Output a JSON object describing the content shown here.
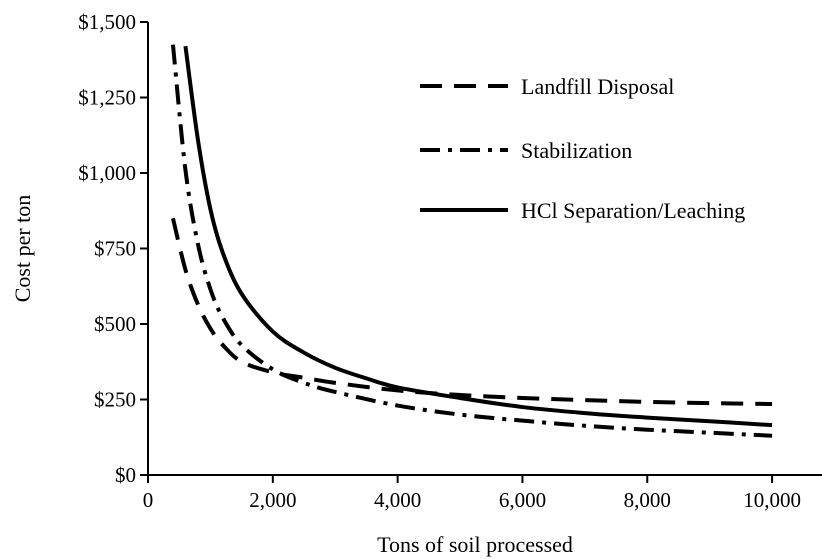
{
  "chart_data": {
    "type": "line",
    "title": "",
    "xlabel": "Tons of soil processed",
    "ylabel": "Cost per ton",
    "xlim": [
      0,
      10800
    ],
    "ylim": [
      0,
      1500
    ],
    "x_ticks": [
      0,
      2000,
      4000,
      6000,
      8000,
      10000
    ],
    "x_tick_labels": [
      "0",
      "2,000",
      "4,000",
      "6,000",
      "8,000",
      "10,000"
    ],
    "y_ticks": [
      0,
      250,
      500,
      750,
      1000,
      1250,
      1500
    ],
    "y_tick_labels": [
      "$0",
      "$250",
      "$500",
      "$750",
      "$1,000",
      "$1,250",
      "$1,500"
    ],
    "grid": false,
    "legend_position": "top-right",
    "series": [
      {
        "name": "Landfill Disposal",
        "style": "dashed",
        "color": "#000000",
        "x": [
          400,
          600,
          800,
          1000,
          1200,
          1500,
          2000,
          2500,
          3000,
          4000,
          5000,
          6000,
          7000,
          8000,
          9000,
          10000
        ],
        "y": [
          850,
          680,
          565,
          485,
          430,
          375,
          340,
          322,
          305,
          280,
          265,
          255,
          248,
          242,
          238,
          235
        ]
      },
      {
        "name": "Stabilization",
        "style": "dash-dot",
        "color": "#000000",
        "x": [
          400,
          600,
          800,
          1000,
          1200,
          1500,
          2000,
          2500,
          3000,
          4000,
          5000,
          6000,
          7000,
          8000,
          9000,
          10000
        ],
        "y": [
          1425,
          1010,
          765,
          615,
          520,
          430,
          350,
          305,
          275,
          230,
          200,
          180,
          163,
          150,
          140,
          130
        ]
      },
      {
        "name": "HCl Separation/Leaching",
        "style": "solid",
        "color": "#000000",
        "x": [
          600,
          800,
          1000,
          1200,
          1500,
          2000,
          2500,
          3000,
          3500,
          4000,
          5000,
          6000,
          7000,
          8000,
          9000,
          10000
        ],
        "y": [
          1420,
          1110,
          880,
          735,
          600,
          475,
          405,
          355,
          320,
          290,
          255,
          225,
          205,
          190,
          178,
          165
        ]
      }
    ]
  }
}
